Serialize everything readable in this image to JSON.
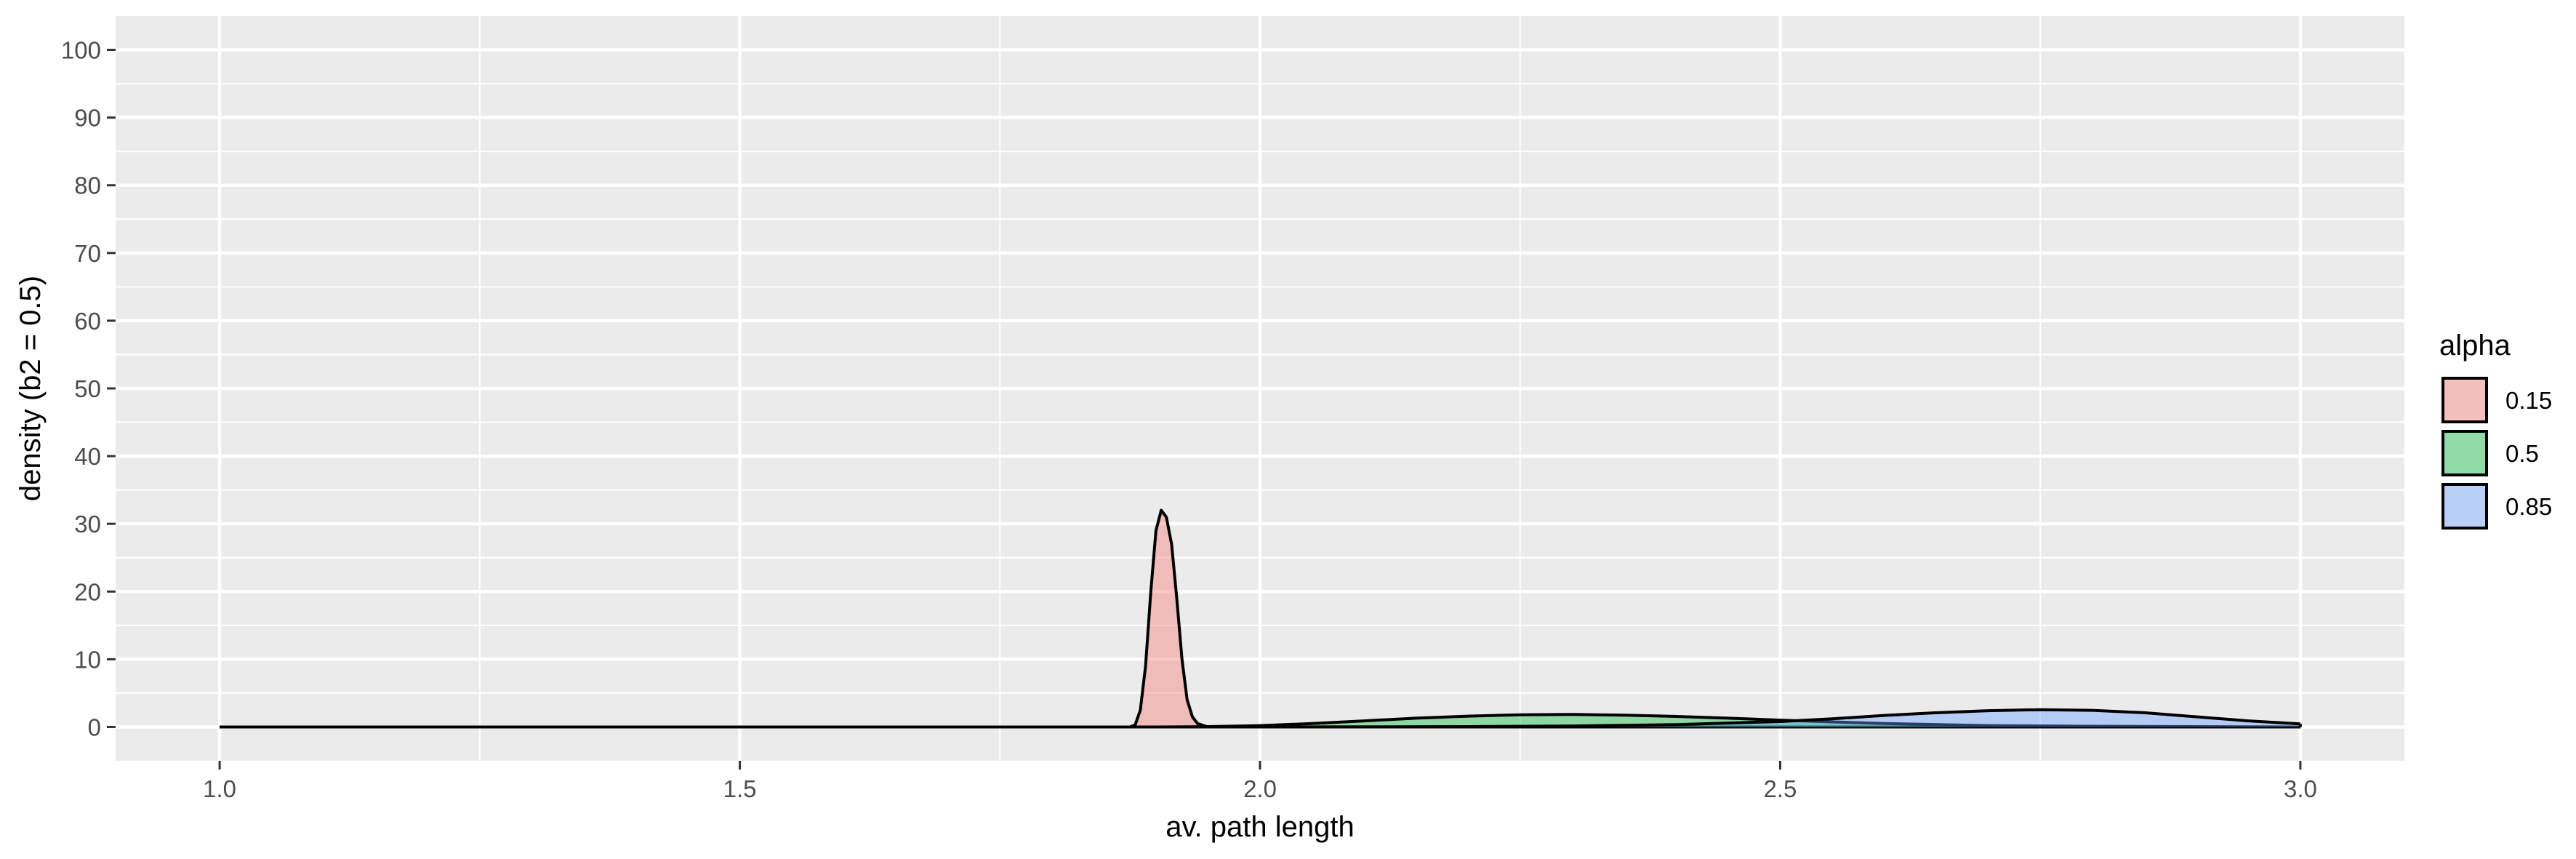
{
  "chart_data": {
    "type": "area",
    "xlabel": "av. path length",
    "ylabel": "density (b2 = 0.5)",
    "xlim": [
      0.9,
      3.1
    ],
    "ylim": [
      -5,
      105
    ],
    "x_ticks": [
      1.0,
      1.5,
      2.0,
      2.5,
      3.0
    ],
    "x_tick_labels": [
      "1.0",
      "1.5",
      "2.0",
      "2.5",
      "3.0"
    ],
    "y_ticks": [
      0,
      10,
      20,
      30,
      40,
      50,
      60,
      70,
      80,
      90,
      100
    ],
    "y_tick_labels": [
      "0",
      "10",
      "20",
      "30",
      "40",
      "50",
      "60",
      "70",
      "80",
      "90",
      "100"
    ],
    "grid": true,
    "legend": {
      "title": "alpha",
      "placement": "right",
      "entries": [
        "0.15",
        "0.5",
        "0.85"
      ]
    },
    "series": [
      {
        "name": "0.15",
        "color": "#F8766D",
        "x": [
          1.0,
          1.85,
          1.875,
          1.88,
          1.885,
          1.89,
          1.895,
          1.9,
          1.905,
          1.91,
          1.915,
          1.92,
          1.925,
          1.93,
          1.935,
          1.94,
          1.95,
          1.97,
          2.0,
          3.0
        ],
        "y": [
          0,
          0,
          0,
          0.3,
          2.5,
          9,
          20,
          29,
          32,
          31,
          27,
          19,
          10,
          4,
          1.5,
          0.5,
          0,
          0,
          0,
          0
        ]
      },
      {
        "name": "0.5",
        "color": "#00BA38",
        "x": [
          1.0,
          1.9,
          1.95,
          2.0,
          2.05,
          2.1,
          2.15,
          2.2,
          2.25,
          2.3,
          2.35,
          2.4,
          2.45,
          2.5,
          2.55,
          2.6,
          2.7,
          2.8,
          3.0
        ],
        "y": [
          0,
          0,
          0.05,
          0.2,
          0.5,
          0.9,
          1.3,
          1.6,
          1.8,
          1.85,
          1.75,
          1.55,
          1.3,
          1.0,
          0.75,
          0.5,
          0.2,
          0.1,
          0
        ]
      },
      {
        "name": "0.85",
        "color": "#619CFF",
        "x": [
          1.0,
          2.0,
          2.2,
          2.3,
          2.4,
          2.5,
          2.55,
          2.6,
          2.65,
          2.7,
          2.75,
          2.8,
          2.85,
          2.9,
          2.95,
          3.0
        ],
        "y": [
          0,
          0,
          0.05,
          0.15,
          0.35,
          0.8,
          1.2,
          1.7,
          2.1,
          2.4,
          2.55,
          2.45,
          2.1,
          1.5,
          0.9,
          0.45
        ]
      }
    ]
  }
}
